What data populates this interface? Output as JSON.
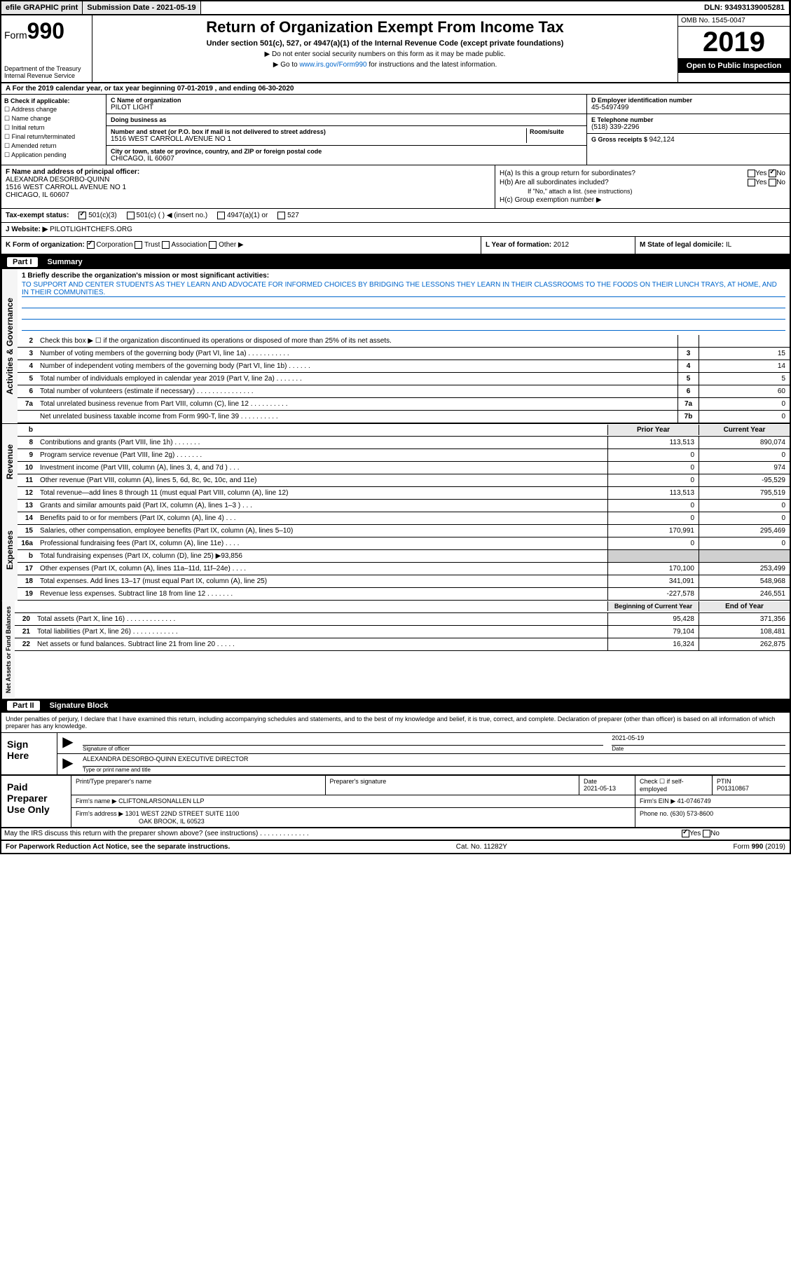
{
  "topbar": {
    "efile": "efile GRAPHIC print",
    "subdate_lbl": "Submission Date - 2021-05-19",
    "dln": "DLN: 93493139005281"
  },
  "header": {
    "form_prefix": "Form",
    "form_num": "990",
    "dept": "Department of the Treasury\nInternal Revenue Service",
    "title": "Return of Organization Exempt From Income Tax",
    "subtitle": "Under section 501(c), 527, or 4947(a)(1) of the Internal Revenue Code (except private foundations)",
    "note1": "▶ Do not enter social security numbers on this form as it may be made public.",
    "note2_pre": "▶ Go to ",
    "note2_link": "www.irs.gov/Form990",
    "note2_post": " for instructions and the latest information.",
    "omb": "OMB No. 1545-0047",
    "year": "2019",
    "inspect": "Open to Public Inspection"
  },
  "rowA": "A For the 2019 calendar year, or tax year beginning 07-01-2019    , and ending 06-30-2020",
  "colB": {
    "hdr": "B Check if applicable:",
    "items": [
      "Address change",
      "Name change",
      "Initial return",
      "Final return/terminated",
      "Amended return",
      "Application pending"
    ]
  },
  "colC": {
    "name_lbl": "C Name of organization",
    "name": "PILOT LIGHT",
    "dba_lbl": "Doing business as",
    "dba": "",
    "addr_lbl": "Number and street (or P.O. box if mail is not delivered to street address)",
    "room_lbl": "Room/suite",
    "addr": "1516 WEST CARROLL AVENUE NO 1",
    "city_lbl": "City or town, state or province, country, and ZIP or foreign postal code",
    "city": "CHICAGO, IL  60607"
  },
  "colD": {
    "ein_lbl": "D Employer identification number",
    "ein": "45-5497499",
    "tel_lbl": "E Telephone number",
    "tel": "(518) 339-2296",
    "gross_lbl": "G Gross receipts $ ",
    "gross": "942,124"
  },
  "colF": {
    "lbl": "F  Name and address of principal officer:",
    "name": "ALEXANDRA DESORBO-QUINN",
    "addr": "1516 WEST CARROLL AVENUE NO 1",
    "city": "CHICAGO, IL  60607"
  },
  "colH": {
    "a": "H(a)  Is this a group return for subordinates?",
    "b": "H(b)  Are all subordinates included?",
    "b_note": "If \"No,\" attach a list. (see instructions)",
    "c": "H(c)  Group exemption number ▶",
    "yes": "Yes",
    "no": "No"
  },
  "tax": {
    "lbl": "Tax-exempt status:",
    "o1": "501(c)(3)",
    "o2": "501(c) (   ) ◀ (insert no.)",
    "o3": "4947(a)(1) or",
    "o4": "527"
  },
  "web": {
    "lbl": "J   Website: ▶",
    "val": "PILOTLIGHTCHEFS.ORG"
  },
  "klm": {
    "k": "K Form of organization:",
    "k_opts": [
      "Corporation",
      "Trust",
      "Association",
      "Other ▶"
    ],
    "l_lbl": "L Year of formation: ",
    "l_val": "2012",
    "m_lbl": "M State of legal domicile: ",
    "m_val": "IL"
  },
  "part1": {
    "num": "Part I",
    "title": "Summary"
  },
  "mission": {
    "lbl": "1  Briefly describe the organization's mission or most significant activities:",
    "text": "TO SUPPORT AND CENTER STUDENTS AS THEY LEARN AND ADVOCATE FOR INFORMED CHOICES BY BRIDGING THE LESSONS THEY LEARN IN THEIR CLASSROOMS TO THE FOODS ON THEIR LUNCH TRAYS, AT HOME, AND IN THEIR COMMUNITIES."
  },
  "gov_rows": [
    {
      "n": "2",
      "d": "Check this box ▶ ☐  if the organization discontinued its operations or disposed of more than 25% of its net assets.",
      "box": "",
      "v": ""
    },
    {
      "n": "3",
      "d": "Number of voting members of the governing body (Part VI, line 1a)  .   .   .   .   .   .   .   .   .   .   .",
      "box": "3",
      "v": "15"
    },
    {
      "n": "4",
      "d": "Number of independent voting members of the governing body (Part VI, line 1b)  .   .   .   .   .   .",
      "box": "4",
      "v": "14"
    },
    {
      "n": "5",
      "d": "Total number of individuals employed in calendar year 2019 (Part V, line 2a)  .   .   .   .   .   .   .",
      "box": "5",
      "v": "5"
    },
    {
      "n": "6",
      "d": "Total number of volunteers (estimate if necessary)    .   .   .   .   .   .   .   .   .   .   .   .   .   .   .",
      "box": "6",
      "v": "60"
    },
    {
      "n": "7a",
      "d": "Total unrelated business revenue from Part VIII, column (C), line 12  .   .   .   .   .   .   .   .   .   .",
      "box": "7a",
      "v": "0"
    },
    {
      "n": "",
      "d": "Net unrelated business taxable income from Form 990-T, line 39   .   .   .   .   .   .   .   .   .   .",
      "box": "7b",
      "v": "0"
    }
  ],
  "py_cy_hdr": {
    "py": "Prior Year",
    "cy": "Current Year"
  },
  "rev_rows": [
    {
      "n": "8",
      "d": "Contributions and grants (Part VIII, line 1h)   .   .   .   .   .   .   .",
      "py": "113,513",
      "cy": "890,074"
    },
    {
      "n": "9",
      "d": "Program service revenue (Part VIII, line 2g)   .   .   .   .   .   .   .",
      "py": "0",
      "cy": "0"
    },
    {
      "n": "10",
      "d": "Investment income (Part VIII, column (A), lines 3, 4, and 7d )   .   .   .",
      "py": "0",
      "cy": "974"
    },
    {
      "n": "11",
      "d": "Other revenue (Part VIII, column (A), lines 5, 6d, 8c, 9c, 10c, and 11e)",
      "py": "0",
      "cy": "-95,529"
    },
    {
      "n": "12",
      "d": "Total revenue—add lines 8 through 11 (must equal Part VIII, column (A), line 12)",
      "py": "113,513",
      "cy": "795,519"
    }
  ],
  "exp_rows": [
    {
      "n": "13",
      "d": "Grants and similar amounts paid (Part IX, column (A), lines 1–3 )  .   .   .",
      "py": "0",
      "cy": "0"
    },
    {
      "n": "14",
      "d": "Benefits paid to or for members (Part IX, column (A), line 4)   .   .   .",
      "py": "0",
      "cy": "0"
    },
    {
      "n": "15",
      "d": "Salaries, other compensation, employee benefits (Part IX, column (A), lines 5–10)",
      "py": "170,991",
      "cy": "295,469"
    },
    {
      "n": "16a",
      "d": "Professional fundraising fees (Part IX, column (A), line 11e)  .   .   .   .",
      "py": "0",
      "cy": "0"
    },
    {
      "n": "b",
      "d": "Total fundraising expenses (Part IX, column (D), line 25) ▶93,856",
      "py": "",
      "cy": "",
      "gray": true
    },
    {
      "n": "17",
      "d": "Other expenses (Part IX, column (A), lines 11a–11d, 11f–24e)  .   .   .   .",
      "py": "170,100",
      "cy": "253,499"
    },
    {
      "n": "18",
      "d": "Total expenses. Add lines 13–17 (must equal Part IX, column (A), line 25)",
      "py": "341,091",
      "cy": "548,968"
    },
    {
      "n": "19",
      "d": "Revenue less expenses. Subtract line 18 from line 12 .   .   .   .   .   .   .",
      "py": "-227,578",
      "cy": "246,551"
    }
  ],
  "na_hdr": {
    "py": "Beginning of Current Year",
    "cy": "End of Year"
  },
  "na_rows": [
    {
      "n": "20",
      "d": "Total assets (Part X, line 16)  .   .   .   .   .   .   .   .   .   .   .   .   .",
      "py": "95,428",
      "cy": "371,356"
    },
    {
      "n": "21",
      "d": "Total liabilities (Part X, line 26)  .   .   .   .   .   .   .   .   .   .   .   .",
      "py": "79,104",
      "cy": "108,481"
    },
    {
      "n": "22",
      "d": "Net assets or fund balances. Subtract line 21 from line 20 .   .   .   .   .",
      "py": "16,324",
      "cy": "262,875"
    }
  ],
  "part2": {
    "num": "Part II",
    "title": "Signature Block"
  },
  "sig": {
    "decl": "Under penalties of perjury, I declare that I have examined this return, including accompanying schedules and statements, and to the best of my knowledge and belief, it is true, correct, and complete. Declaration of preparer (other than officer) is based on all information of which preparer has any knowledge.",
    "here": "Sign Here",
    "officer_lbl": "Signature of officer",
    "date_lbl": "Date",
    "date": "2021-05-19",
    "name": "ALEXANDRA DESORBO-QUINN  EXECUTIVE DIRECTOR",
    "name_lbl": "Type or print name and title"
  },
  "prep": {
    "title": "Paid Preparer Use Only",
    "h1": "Print/Type preparer's name",
    "h2": "Preparer's signature",
    "h3": "Date",
    "h3v": "2021-05-13",
    "h4": "Check ☐ if self-employed",
    "h5_lbl": "PTIN",
    "h5": "P01310867",
    "firm_lbl": "Firm's name    ▶",
    "firm": "CLIFTONLARSONALLEN LLP",
    "ein_lbl": "Firm's EIN ▶",
    "ein": "41-0746749",
    "addr_lbl": "Firm's address ▶",
    "addr": "1301 WEST 22ND STREET SUITE 1100",
    "addr2": "OAK BROOK, IL  60523",
    "phone_lbl": "Phone no.",
    "phone": "(630) 573-8600"
  },
  "discuss": "May the IRS discuss this return with the preparer shown above? (see instructions)   .   .   .   .   .   .   .   .   .   .   .   .   .",
  "footer": {
    "left": "For Paperwork Reduction Act Notice, see the separate instructions.",
    "mid": "Cat. No. 11282Y",
    "right": "Form 990 (2019)"
  },
  "labels": {
    "gov": "Activities & Governance",
    "rev": "Revenue",
    "exp": "Expenses",
    "na": "Net Assets or Fund Balances"
  }
}
